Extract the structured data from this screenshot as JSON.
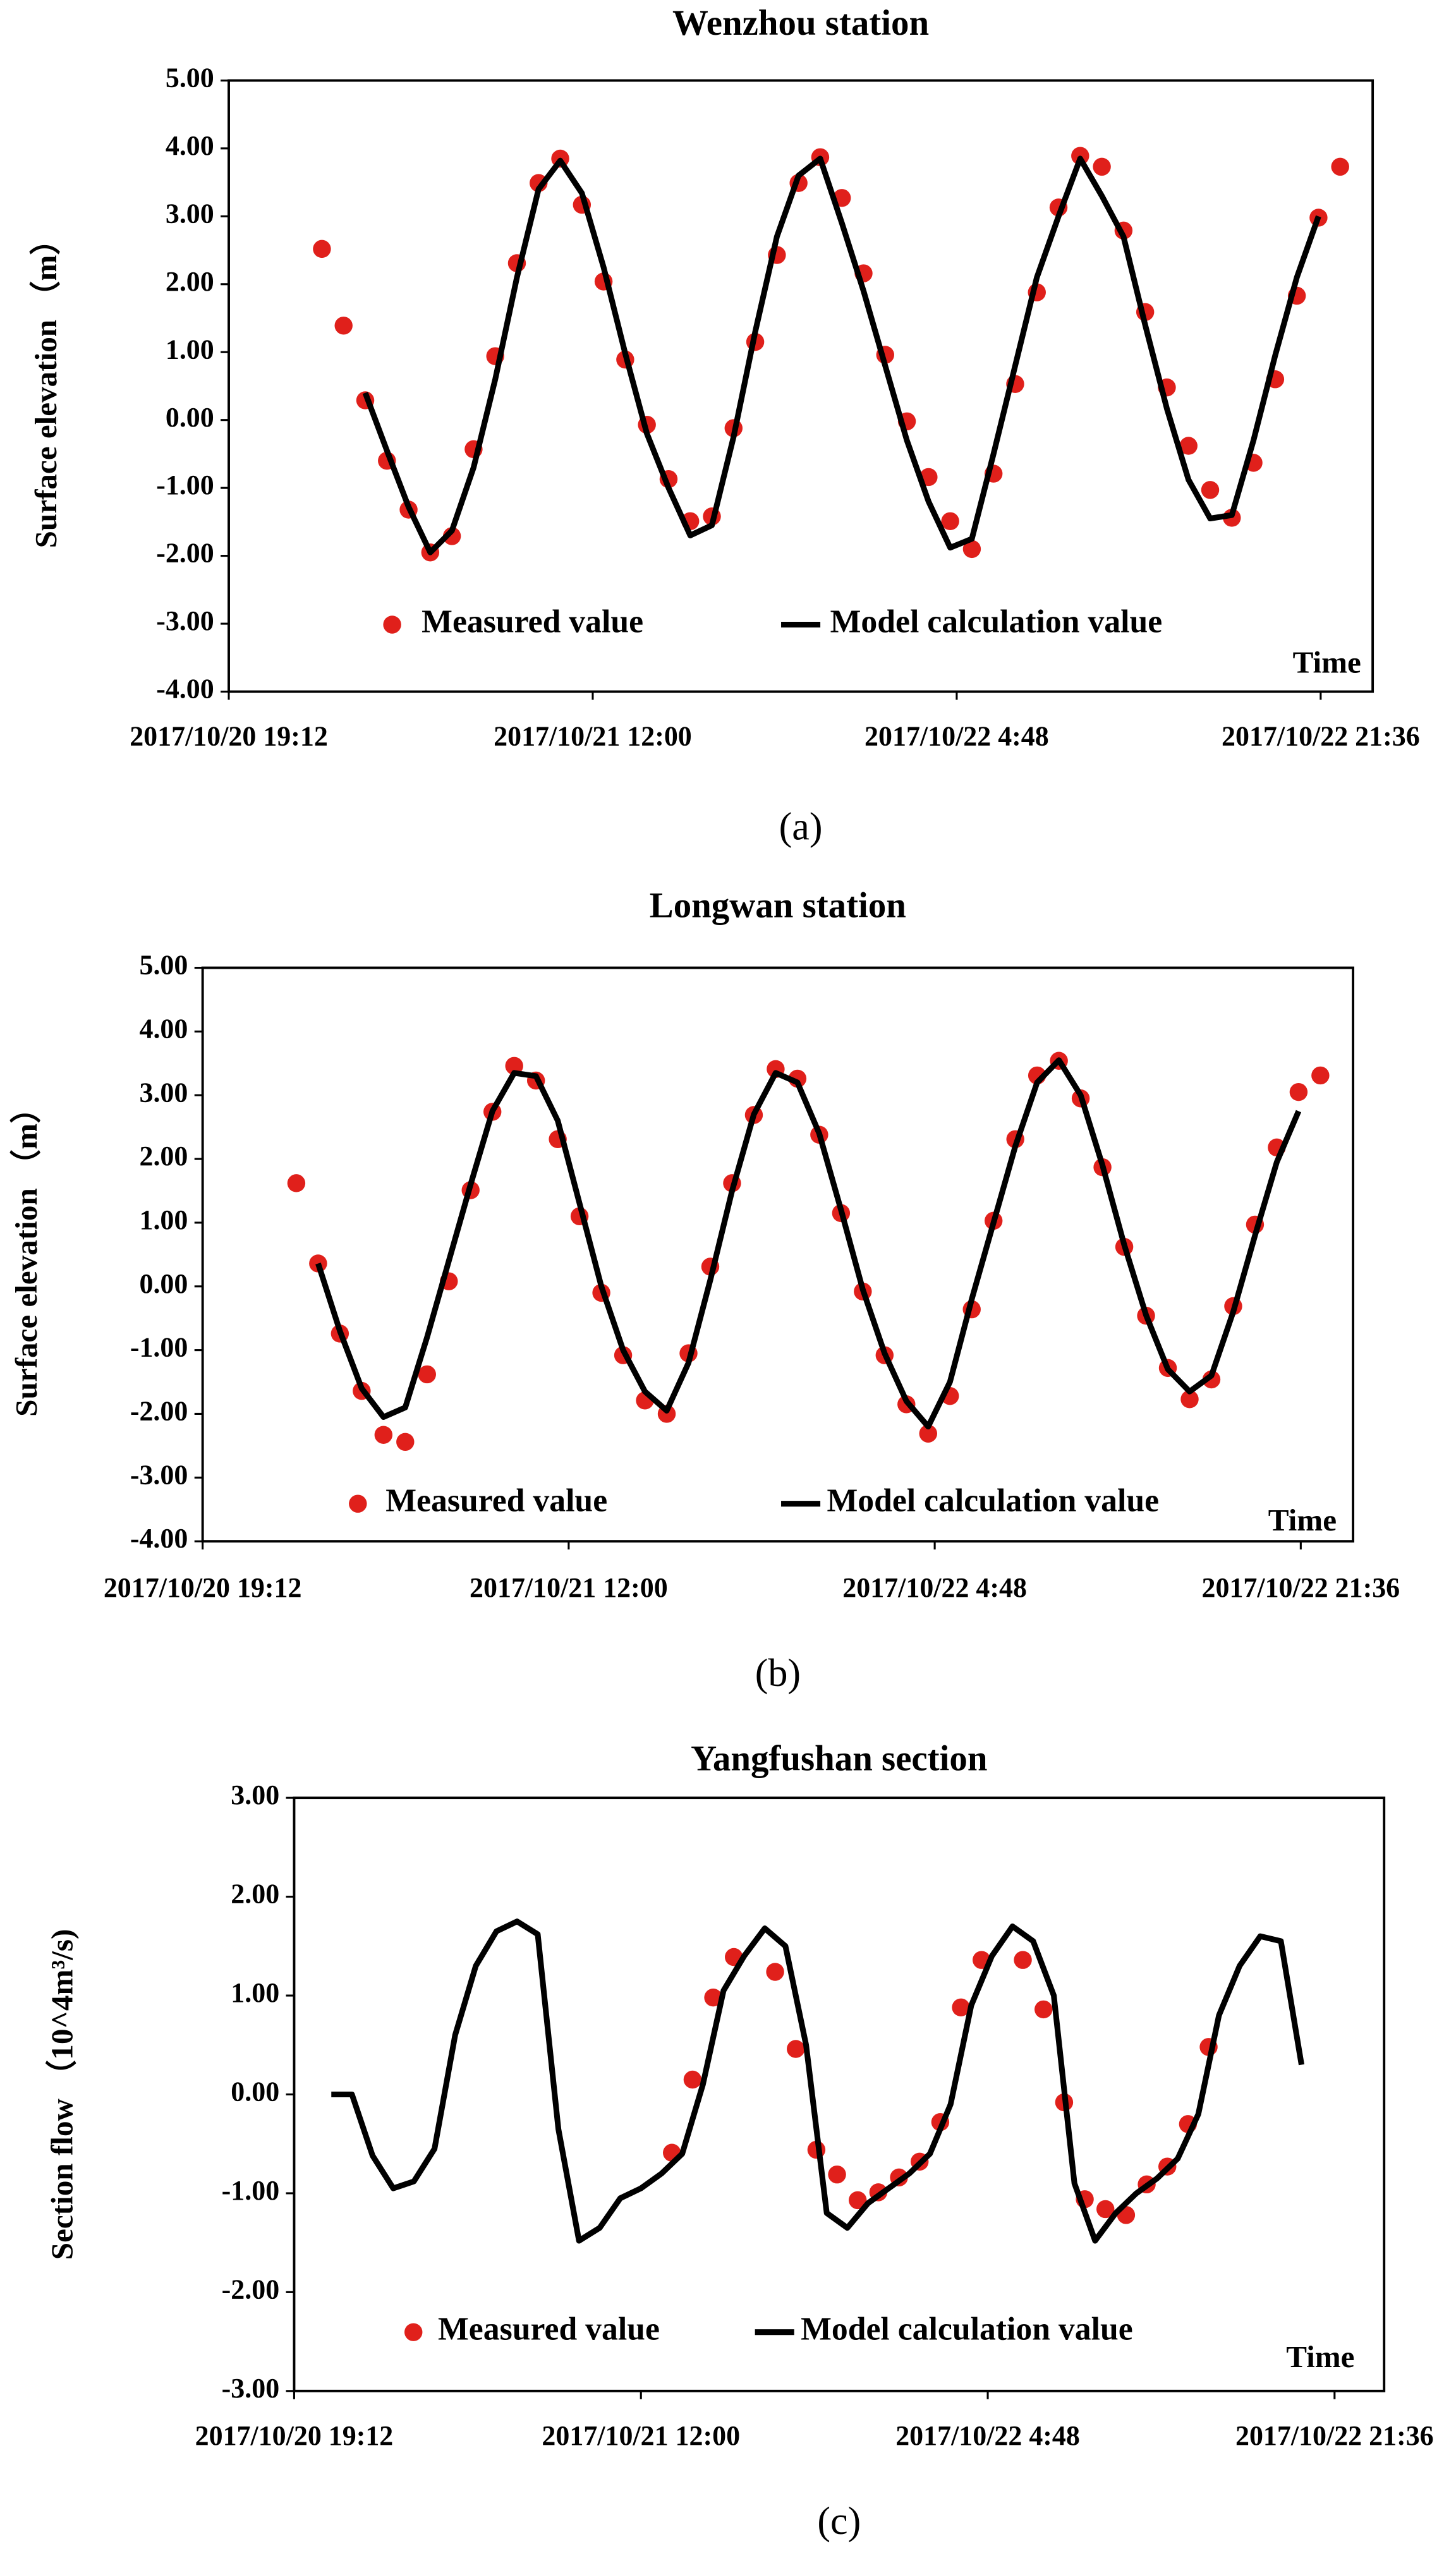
{
  "chart_data": [
    {
      "type": "line",
      "title": "Wenzhou  station",
      "ylabel": "Surface elevation （m）",
      "xlabel": "Time",
      "caption": "(a)",
      "legend": "bottom",
      "x": [
        "2017/10/20 23:30",
        "2017/10/21 00:30",
        "2017/10/21 01:30",
        "2017/10/21 02:30",
        "2017/10/21 03:30",
        "2017/10/21 04:30",
        "2017/10/21 05:30",
        "2017/10/21 06:30",
        "2017/10/21 07:30",
        "2017/10/21 08:30",
        "2017/10/21 09:30",
        "2017/10/21 10:30",
        "2017/10/21 11:30",
        "2017/10/21 12:30",
        "2017/10/21 13:30",
        "2017/10/21 14:30",
        "2017/10/21 15:30",
        "2017/10/21 16:30",
        "2017/10/21 17:30",
        "2017/10/21 18:30",
        "2017/10/21 19:30",
        "2017/10/21 20:30",
        "2017/10/21 21:30",
        "2017/10/21 22:30",
        "2017/10/21 23:30",
        "2017/10/22 00:30",
        "2017/10/22 01:30",
        "2017/10/22 02:30",
        "2017/10/22 03:30",
        "2017/10/22 04:30",
        "2017/10/22 05:30",
        "2017/10/22 06:30",
        "2017/10/22 07:30",
        "2017/10/22 08:30",
        "2017/10/22 09:30",
        "2017/10/22 10:30",
        "2017/10/22 11:30",
        "2017/10/22 12:30",
        "2017/10/22 13:30",
        "2017/10/22 14:30",
        "2017/10/22 15:30",
        "2017/10/22 16:30",
        "2017/10/22 17:30",
        "2017/10/22 18:30",
        "2017/10/22 19:30",
        "2017/10/22 20:30",
        "2017/10/22 21:30",
        "2017/10/22 22:30"
      ],
      "series": [
        {
          "name": "Measured value",
          "type": "scatter",
          "color": "#e0201b",
          "values": [
            2.52,
            1.39,
            0.29,
            -0.6,
            -1.32,
            -1.95,
            -1.71,
            -0.43,
            0.94,
            2.31,
            3.49,
            3.85,
            3.17,
            2.04,
            0.89,
            -0.07,
            -0.87,
            -1.49,
            -1.42,
            -0.12,
            1.15,
            2.43,
            3.49,
            3.87,
            3.27,
            2.16,
            0.96,
            -0.02,
            -0.84,
            -1.49,
            -1.9,
            -0.79,
            0.53,
            1.88,
            3.13,
            3.89,
            3.73,
            2.79,
            1.59,
            0.48,
            -0.38,
            -1.03,
            -1.44,
            -0.63,
            0.6,
            1.83,
            2.98,
            3.73
          ]
        },
        {
          "name": "Model calculation value",
          "type": "line",
          "color": "#000000",
          "values": [
            null,
            null,
            0.4,
            -0.45,
            -1.28,
            -1.95,
            -1.63,
            -0.7,
            0.6,
            2.1,
            3.4,
            3.82,
            3.34,
            2.25,
            0.98,
            -0.2,
            -1.0,
            -1.7,
            -1.55,
            -0.25,
            1.3,
            2.7,
            3.6,
            3.85,
            2.9,
            1.9,
            0.8,
            -0.3,
            -1.2,
            -1.88,
            -1.75,
            -0.5,
            0.8,
            2.1,
            3.0,
            3.85,
            3.3,
            2.7,
            1.4,
            0.17,
            -0.88,
            -1.45,
            -1.4,
            -0.3,
            0.95,
            2.1,
            3.0,
            null
          ]
        }
      ],
      "xlim": [
        "2017/10/20 19:12",
        "2017/10/23 00:00"
      ],
      "xticks": [
        "2017/10/20 19:12",
        "2017/10/21 12:00",
        "2017/10/22 4:48",
        "2017/10/22 21:36"
      ],
      "ylim": [
        -4,
        5
      ],
      "yticks": [
        {
          "value": 5,
          "label": "5.00"
        },
        {
          "value": 4,
          "label": "4.00"
        },
        {
          "value": 3,
          "label": "3.00"
        },
        {
          "value": 2,
          "label": "2.00"
        },
        {
          "value": 1,
          "label": "1.00"
        },
        {
          "value": 0,
          "label": "0.00"
        },
        {
          "value": -1,
          "label": "-1.00"
        },
        {
          "value": -2,
          "label": "-2.00"
        },
        {
          "value": -3,
          "label": "-3.00"
        },
        {
          "value": -4,
          "label": "-4.00"
        }
      ]
    },
    {
      "type": "line",
      "title": "Longwan  station",
      "ylabel": "Surface elevation （m）",
      "xlabel": "Time",
      "caption": "(b)",
      "legend": "bottom",
      "x": [
        "2017/10/20 23:30",
        "2017/10/21 00:30",
        "2017/10/21 01:30",
        "2017/10/21 02:30",
        "2017/10/21 03:30",
        "2017/10/21 04:30",
        "2017/10/21 05:30",
        "2017/10/21 06:30",
        "2017/10/21 07:30",
        "2017/10/21 08:30",
        "2017/10/21 09:30",
        "2017/10/21 10:30",
        "2017/10/21 11:30",
        "2017/10/21 12:30",
        "2017/10/21 13:30",
        "2017/10/21 14:30",
        "2017/10/21 15:30",
        "2017/10/21 16:30",
        "2017/10/21 17:30",
        "2017/10/21 18:30",
        "2017/10/21 19:30",
        "2017/10/21 20:30",
        "2017/10/21 21:30",
        "2017/10/21 22:30",
        "2017/10/21 23:30",
        "2017/10/22 00:30",
        "2017/10/22 01:30",
        "2017/10/22 02:30",
        "2017/10/22 03:30",
        "2017/10/22 04:30",
        "2017/10/22 05:30",
        "2017/10/22 06:30",
        "2017/10/22 07:30",
        "2017/10/22 08:30",
        "2017/10/22 09:30",
        "2017/10/22 10:30",
        "2017/10/22 11:30",
        "2017/10/22 12:30",
        "2017/10/22 13:30",
        "2017/10/22 14:30",
        "2017/10/22 15:30",
        "2017/10/22 16:30",
        "2017/10/22 17:30",
        "2017/10/22 18:30",
        "2017/10/22 19:30",
        "2017/10/22 20:30",
        "2017/10/22 21:30",
        "2017/10/22 22:30"
      ],
      "series": [
        {
          "name": "Measured value",
          "type": "scatter",
          "color": "#e0201b",
          "values": [
            1.62,
            0.36,
            -0.74,
            -1.64,
            -2.33,
            -2.44,
            -1.38,
            0.08,
            1.51,
            2.74,
            3.46,
            3.23,
            2.31,
            1.1,
            -0.1,
            -1.08,
            -1.79,
            -2.0,
            -1.05,
            0.31,
            1.62,
            2.69,
            3.41,
            3.26,
            2.38,
            1.15,
            -0.08,
            -1.08,
            -1.85,
            -2.31,
            -1.72,
            -0.36,
            1.03,
            2.31,
            3.31,
            3.54,
            2.95,
            1.87,
            0.62,
            -0.46,
            -1.28,
            -1.77,
            -1.46,
            -0.31,
            0.97,
            2.18,
            3.05,
            3.31
          ]
        },
        {
          "name": "Model calculation value",
          "type": "line",
          "color": "#000000",
          "values": [
            null,
            0.36,
            -0.7,
            -1.6,
            -2.05,
            -1.9,
            -0.8,
            0.4,
            1.6,
            2.75,
            3.35,
            3.3,
            2.6,
            1.3,
            0.0,
            -1.0,
            -1.65,
            -1.95,
            -1.2,
            0.1,
            1.5,
            2.7,
            3.35,
            3.2,
            2.4,
            1.2,
            -0.05,
            -1.05,
            -1.8,
            -2.2,
            -1.5,
            -0.2,
            1.0,
            2.2,
            3.2,
            3.55,
            3.0,
            1.9,
            0.65,
            -0.45,
            -1.3,
            -1.65,
            -1.4,
            -0.4,
            0.8,
            1.95,
            2.75,
            null
          ]
        }
      ],
      "xlim": [
        "2017/10/20 19:12",
        "2017/10/23 00:00"
      ],
      "xticks": [
        "2017/10/20 19:12",
        "2017/10/21 12:00",
        "2017/10/22 4:48",
        "2017/10/22 21:36"
      ],
      "ylim": [
        -4,
        5
      ],
      "yticks": [
        {
          "value": 5,
          "label": "5.00"
        },
        {
          "value": 4,
          "label": "4.00"
        },
        {
          "value": 3,
          "label": "3.00"
        },
        {
          "value": 2,
          "label": "2.00"
        },
        {
          "value": 1,
          "label": "1.00"
        },
        {
          "value": 0,
          "label": "0.00"
        },
        {
          "value": -1,
          "label": "-1.00"
        },
        {
          "value": -2,
          "label": "-2.00"
        },
        {
          "value": -3,
          "label": "-3.00"
        },
        {
          "value": -4,
          "label": "-4.00"
        }
      ]
    },
    {
      "type": "line",
      "title": "Yangfushan section",
      "ylabel": "Section flow （10^4m³/s)",
      "xlabel": "Time",
      "caption": "(c)",
      "legend": "bottom",
      "series": [
        {
          "name": "Measured value",
          "type": "scatter",
          "color": "#e0201b",
          "x": [
            "2017/10/21 13:30",
            "2017/10/21 14:30",
            "2017/10/21 15:30",
            "2017/10/21 16:30",
            "2017/10/21 18:30",
            "2017/10/21 19:30",
            "2017/10/21 20:30",
            "2017/10/21 21:30",
            "2017/10/21 22:30",
            "2017/10/21 23:30",
            "2017/10/22 00:30",
            "2017/10/22 01:30",
            "2017/10/22 02:30",
            "2017/10/22 03:30",
            "2017/10/22 04:30",
            "2017/10/22 06:30",
            "2017/10/22 07:30",
            "2017/10/22 08:30",
            "2017/10/22 09:30",
            "2017/10/22 10:30",
            "2017/10/22 11:30",
            "2017/10/22 12:30",
            "2017/10/22 13:30",
            "2017/10/22 14:30",
            "2017/10/22 15:30"
          ],
          "values": [
            -0.59,
            0.15,
            0.98,
            1.39,
            1.24,
            0.46,
            -0.56,
            -0.81,
            -1.07,
            -0.99,
            -0.84,
            -0.68,
            -0.28,
            0.88,
            1.36,
            1.36,
            0.86,
            -0.08,
            -1.06,
            -1.16,
            -1.22,
            -0.91,
            -0.73,
            -0.3,
            0.48
          ]
        },
        {
          "name": "Model calculation value",
          "type": "line",
          "color": "#000000",
          "x": [
            "2017/10/20 21:00",
            "2017/10/20 22:00",
            "2017/10/20 23:00",
            "2017/10/21 00:00",
            "2017/10/21 01:00",
            "2017/10/21 02:00",
            "2017/10/21 03:00",
            "2017/10/21 04:00",
            "2017/10/21 05:00",
            "2017/10/21 06:00",
            "2017/10/21 07:00",
            "2017/10/21 08:00",
            "2017/10/21 09:00",
            "2017/10/21 10:00",
            "2017/10/21 11:00",
            "2017/10/21 12:00",
            "2017/10/21 13:00",
            "2017/10/21 14:00",
            "2017/10/21 15:00",
            "2017/10/21 16:00",
            "2017/10/21 17:00",
            "2017/10/21 18:00",
            "2017/10/21 19:00",
            "2017/10/21 20:00",
            "2017/10/21 21:00",
            "2017/10/21 22:00",
            "2017/10/21 23:00",
            "2017/10/22 00:00",
            "2017/10/22 01:00",
            "2017/10/22 02:00",
            "2017/10/22 03:00",
            "2017/10/22 04:00",
            "2017/10/22 05:00",
            "2017/10/22 06:00",
            "2017/10/22 07:00",
            "2017/10/22 08:00",
            "2017/10/22 09:00",
            "2017/10/22 10:00",
            "2017/10/22 11:00",
            "2017/10/22 12:00",
            "2017/10/22 13:00",
            "2017/10/22 14:00",
            "2017/10/22 15:00",
            "2017/10/22 16:00",
            "2017/10/22 17:00",
            "2017/10/22 18:00",
            "2017/10/22 19:00",
            "2017/10/22 20:00"
          ],
          "values": [
            0.0,
            0.0,
            -0.62,
            -0.95,
            -0.88,
            -0.55,
            0.6,
            1.3,
            1.65,
            1.75,
            1.62,
            -0.35,
            -1.48,
            -1.35,
            -1.05,
            -0.95,
            -0.8,
            -0.6,
            0.1,
            1.05,
            1.4,
            1.68,
            1.5,
            0.5,
            -1.2,
            -1.35,
            -1.1,
            -0.95,
            -0.8,
            -0.6,
            -0.1,
            0.9,
            1.4,
            1.7,
            1.55,
            1.0,
            -0.9,
            -1.48,
            -1.2,
            -1.0,
            -0.85,
            -0.65,
            -0.2,
            0.8,
            1.3,
            1.6,
            1.55,
            0.3
          ]
        }
      ],
      "xlim": [
        "2017/10/20 19:12",
        "2017/10/23 00:00"
      ],
      "xticks": [
        "2017/10/20 19:12",
        "2017/10/21 12:00",
        "2017/10/22 4:48",
        "2017/10/22 21:36"
      ],
      "ylim": [
        -3,
        3
      ],
      "yticks": [
        {
          "value": 3,
          "label": "3.00"
        },
        {
          "value": 2,
          "label": "2.00"
        },
        {
          "value": 1,
          "label": "1.00"
        },
        {
          "value": 0,
          "label": "0.00"
        },
        {
          "value": -1,
          "label": "-1.00"
        },
        {
          "value": -2,
          "label": "-2.00"
        },
        {
          "value": -3,
          "label": "-3.00"
        }
      ]
    }
  ]
}
